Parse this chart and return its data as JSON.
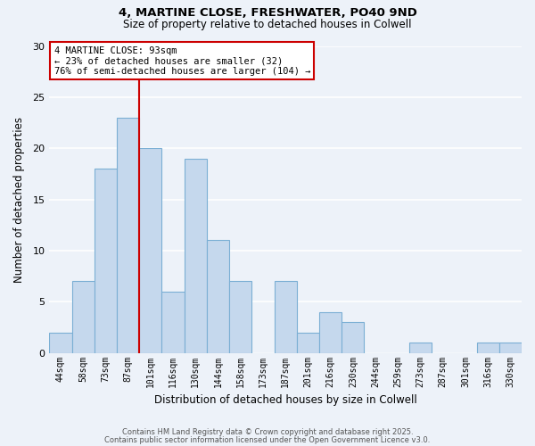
{
  "title_line1": "4, MARTINE CLOSE, FRESHWATER, PO40 9ND",
  "title_line2": "Size of property relative to detached houses in Colwell",
  "xlabel": "Distribution of detached houses by size in Colwell",
  "ylabel": "Number of detached properties",
  "categories": [
    "44sqm",
    "58sqm",
    "73sqm",
    "87sqm",
    "101sqm",
    "116sqm",
    "130sqm",
    "144sqm",
    "158sqm",
    "173sqm",
    "187sqm",
    "201sqm",
    "216sqm",
    "230sqm",
    "244sqm",
    "259sqm",
    "273sqm",
    "287sqm",
    "301sqm",
    "316sqm",
    "330sqm"
  ],
  "values": [
    2,
    7,
    18,
    23,
    20,
    6,
    19,
    11,
    7,
    0,
    7,
    2,
    4,
    3,
    0,
    0,
    1,
    0,
    0,
    1,
    1
  ],
  "bar_color": "#c5d8ed",
  "bar_edge_color": "#7bafd4",
  "ylim": [
    0,
    30
  ],
  "yticks": [
    0,
    5,
    10,
    15,
    20,
    25,
    30
  ],
  "annotation_line1": "4 MARTINE CLOSE: 93sqm",
  "annotation_line2": "← 23% of detached houses are smaller (32)",
  "annotation_line3": "76% of semi-detached houses are larger (104) →",
  "vline_x_index": 3.5,
  "vline_color": "#cc0000",
  "bg_color": "#edf2f9",
  "grid_color": "#ffffff",
  "footer_line1": "Contains HM Land Registry data © Crown copyright and database right 2025.",
  "footer_line2": "Contains public sector information licensed under the Open Government Licence v3.0."
}
